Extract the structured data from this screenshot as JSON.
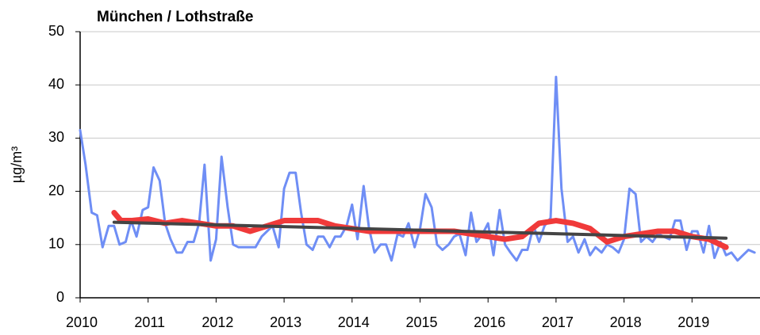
{
  "chart_data": {
    "type": "line",
    "title": "München / Lothstraße",
    "y_label": "µg/m³",
    "xlim": [
      2010,
      2020
    ],
    "ylim": [
      0,
      50
    ],
    "xticks": [
      2010,
      2011,
      2012,
      2013,
      2014,
      2015,
      2016,
      2017,
      2018,
      2019
    ],
    "yticks": [
      0,
      10,
      20,
      30,
      40,
      50
    ],
    "grid": true,
    "series": [
      {
        "color": "#6f8ef5",
        "width": 3,
        "x": [
          2010.0,
          2010.08,
          2010.17,
          2010.25,
          2010.33,
          2010.42,
          2010.5,
          2010.58,
          2010.67,
          2010.75,
          2010.83,
          2010.92,
          2011.0,
          2011.08,
          2011.17,
          2011.25,
          2011.33,
          2011.42,
          2011.5,
          2011.58,
          2011.67,
          2011.75,
          2011.83,
          2011.92,
          2012.0,
          2012.08,
          2012.17,
          2012.25,
          2012.33,
          2012.42,
          2012.5,
          2012.58,
          2012.67,
          2012.75,
          2012.83,
          2012.92,
          2013.0,
          2013.08,
          2013.17,
          2013.25,
          2013.33,
          2013.42,
          2013.5,
          2013.58,
          2013.67,
          2013.75,
          2013.83,
          2013.92,
          2014.0,
          2014.08,
          2014.17,
          2014.25,
          2014.33,
          2014.42,
          2014.5,
          2014.58,
          2014.67,
          2014.75,
          2014.83,
          2014.92,
          2015.0,
          2015.08,
          2015.17,
          2015.25,
          2015.33,
          2015.42,
          2015.5,
          2015.58,
          2015.67,
          2015.75,
          2015.83,
          2015.92,
          2016.0,
          2016.08,
          2016.17,
          2016.25,
          2016.33,
          2016.42,
          2016.5,
          2016.58,
          2016.67,
          2016.75,
          2016.83,
          2016.92,
          2017.0,
          2017.08,
          2017.17,
          2017.25,
          2017.33,
          2017.42,
          2017.5,
          2017.58,
          2017.67,
          2017.75,
          2017.83,
          2017.92,
          2018.0,
          2018.08,
          2018.17,
          2018.25,
          2018.33,
          2018.42,
          2018.5,
          2018.58,
          2018.67,
          2018.75,
          2018.83,
          2018.92,
          2019.0,
          2019.08,
          2019.17,
          2019.25,
          2019.33,
          2019.42,
          2019.5,
          2019.58,
          2019.67,
          2019.75,
          2019.83,
          2019.92
        ],
        "values": [
          31.5,
          25,
          16,
          15.5,
          9.5,
          13.5,
          13.5,
          10,
          10.5,
          14.5,
          11.5,
          16.5,
          17,
          24.5,
          22,
          14,
          11,
          8.5,
          8.5,
          10.5,
          10.5,
          14,
          25,
          7,
          11,
          26.5,
          17,
          10,
          9.5,
          9.5,
          9.5,
          9.5,
          11.5,
          12.5,
          13.5,
          9.5,
          20.5,
          23.5,
          23.5,
          16,
          10,
          9,
          11.5,
          11.5,
          9.5,
          11.5,
          11.5,
          13.5,
          17.5,
          11,
          21,
          13,
          8.5,
          10,
          10,
          7,
          12,
          11.5,
          14,
          9.5,
          13,
          19.5,
          17,
          10,
          9,
          10,
          11.5,
          12,
          8,
          16,
          10.5,
          12,
          14,
          8,
          16.5,
          10,
          8.5,
          7,
          9,
          9,
          13.5,
          10.5,
          13.5,
          15,
          41.5,
          20.5,
          10.5,
          11.5,
          8.5,
          11,
          8,
          9.5,
          8.5,
          10,
          9.5,
          8.5,
          11,
          20.5,
          19.5,
          10.5,
          11.5,
          10.5,
          12,
          11.5,
          11,
          14.5,
          14.5,
          9,
          12.5,
          12.5,
          8.5,
          13.5,
          7.5,
          10.5,
          8,
          8.5,
          7,
          8,
          9,
          8.5
        ]
      },
      {
        "color": "#f03a3a",
        "width": 7,
        "x": [
          2010.5,
          2010.6,
          2010.75,
          2011,
          2011.25,
          2011.5,
          2011.75,
          2012,
          2012.25,
          2012.5,
          2012.75,
          2013,
          2013.25,
          2013.5,
          2013.75,
          2014,
          2014.25,
          2014.5,
          2014.75,
          2015,
          2015.25,
          2015.5,
          2015.75,
          2016,
          2016.25,
          2016.5,
          2016.75,
          2017,
          2017.25,
          2017.5,
          2017.75,
          2018,
          2018.25,
          2018.5,
          2018.75,
          2019,
          2019.25,
          2019.5
        ],
        "values": [
          16,
          14.5,
          14.5,
          14.8,
          14,
          14.5,
          14,
          13.5,
          13.5,
          12.5,
          13.5,
          14.5,
          14.5,
          14.5,
          13.5,
          13,
          12.5,
          12.5,
          12.5,
          12.5,
          12.5,
          12.5,
          12,
          11.5,
          11,
          11.5,
          14,
          14.5,
          14,
          13,
          10.5,
          11.5,
          12,
          12.5,
          12.5,
          11.5,
          11,
          9.5
        ]
      },
      {
        "color": "#444444",
        "width": 4,
        "x": [
          2010.5,
          2019.5
        ],
        "values": [
          14.2,
          11.2
        ]
      }
    ]
  }
}
